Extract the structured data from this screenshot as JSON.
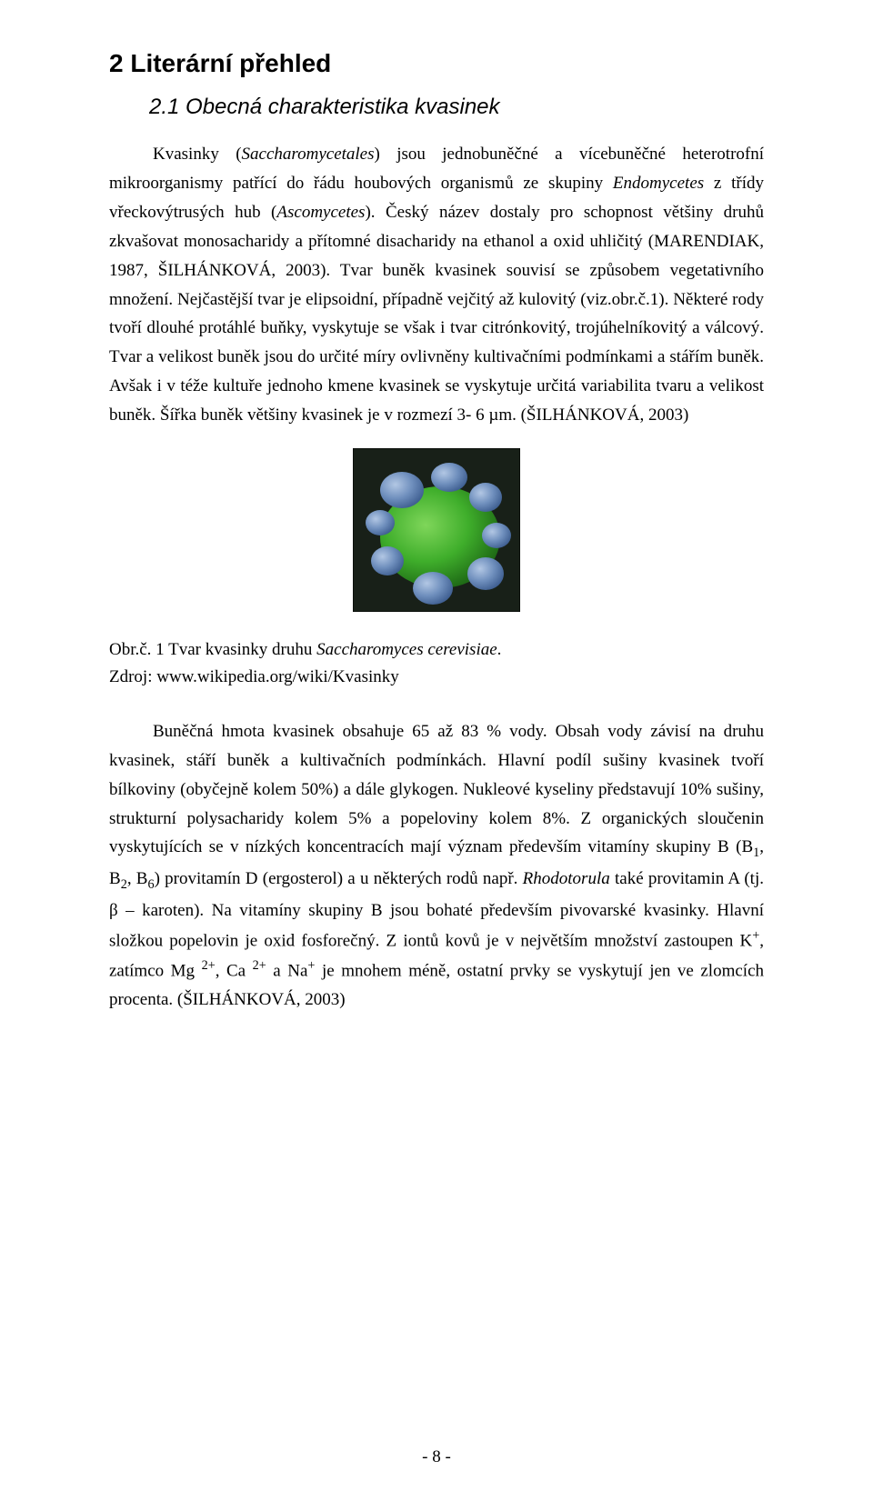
{
  "heading1": "2  Literární přehled",
  "heading2": "2.1  Obecná charakteristika kvasinek",
  "para1_parts": {
    "t1": "Kvasinky (",
    "em1": "Saccharomycetales",
    "t2": ") jsou jednobuněčné a vícebuněčné heterotrofní mikroorganismy patřící do řádu houbových organismů ze skupiny ",
    "em2": "Endomycetes",
    "t3": " z třídy vřeckovýtrusých hub (",
    "em3": "Ascomycetes",
    "t4": "). Český název dostaly pro schopnost většiny druhů zkvašovat monosacharidy a přítomné disacharidy na ethanol a oxid uhličitý (MARENDIAK, 1987, ŠILHÁNKOVÁ, 2003)."
  },
  "para2": " Tvar buněk kvasinek souvisí se způsobem vegetativního množení. Nejčastější tvar je elipsoidní, případně vejčitý až kulovitý (viz.obr.č.1). Některé rody tvoří dlouhé protáhlé buňky, vyskytuje se však i tvar citrónkovitý, trojúhelníkovitý a válcový. Tvar a velikost buněk jsou do určité míry ovlivněny kultivačními podmínkami a stářím buněk. Avšak i v téže kultuře jednoho kmene kvasinek se vyskytuje určitá variabilita tvaru a velikost buněk. Šířka buněk většiny kvasinek je v rozmezí 3- 6 µm. (ŠILHÁNKOVÁ, 2003)",
  "caption_parts": {
    "line1_t1": "Obr.č. 1 Tvar kvasinky druhu ",
    "line1_em": "Saccharomyces cerevisiae",
    "line1_t2": ".",
    "line2": "Zdroj: www.wikipedia.org/wiki/Kvasinky"
  },
  "para3_parts": {
    "t1": "Buněčná hmota kvasinek obsahuje 65 až 83 % vody. Obsah vody závisí na druhu kvasinek, stáří buněk a kultivačních podmínkách. Hlavní podíl sušiny kvasinek tvoří bílkoviny (obyčejně kolem 50%) a dále glykogen. Nukleové kyseliny představují 10% sušiny, strukturní polysacharidy kolem 5% a popeloviny kolem 8%. Z organických sloučenin vyskytujících se v nízkých koncentracích mají význam především vitamíny skupiny B (B",
    "sub1": "1",
    "t2": ", B",
    "sub2": "2",
    "t3": ", B",
    "sub3": "6",
    "t4": ") provitamín D (ergosterol) a u některých rodů např. ",
    "em1": "Rhodotorula",
    "t5": " také provitamin A (tj. β – karoten).  Na vitamíny skupiny B jsou bohaté především pivovarské kvasinky. Hlavní složkou popelovin je oxid fosforečný. Z iontů kovů je v největším množství zastoupen K",
    "sup1": "+",
    "t6": ", zatímco Mg ",
    "sup2": "2+",
    "t7": ", Ca ",
    "sup3": "2+",
    "t8": " a Na",
    "sup4": "+",
    "t9": " je mnohem méně, ostatní prvky se vyskytují jen ve zlomcích procenta. (ŠILHÁNKOVÁ, 2003)"
  },
  "page_number": "- 8 -",
  "figure": {
    "width": 184,
    "height": 180,
    "border_color": "#000000",
    "background_color": "#182018",
    "cell_body_color": "#3fae2b",
    "cell_body_highlight": "#7fd65a",
    "bud_color": "#6f8fbd",
    "bud_highlight": "#b2c7e4",
    "bud_shadow": "#3f5f91"
  }
}
